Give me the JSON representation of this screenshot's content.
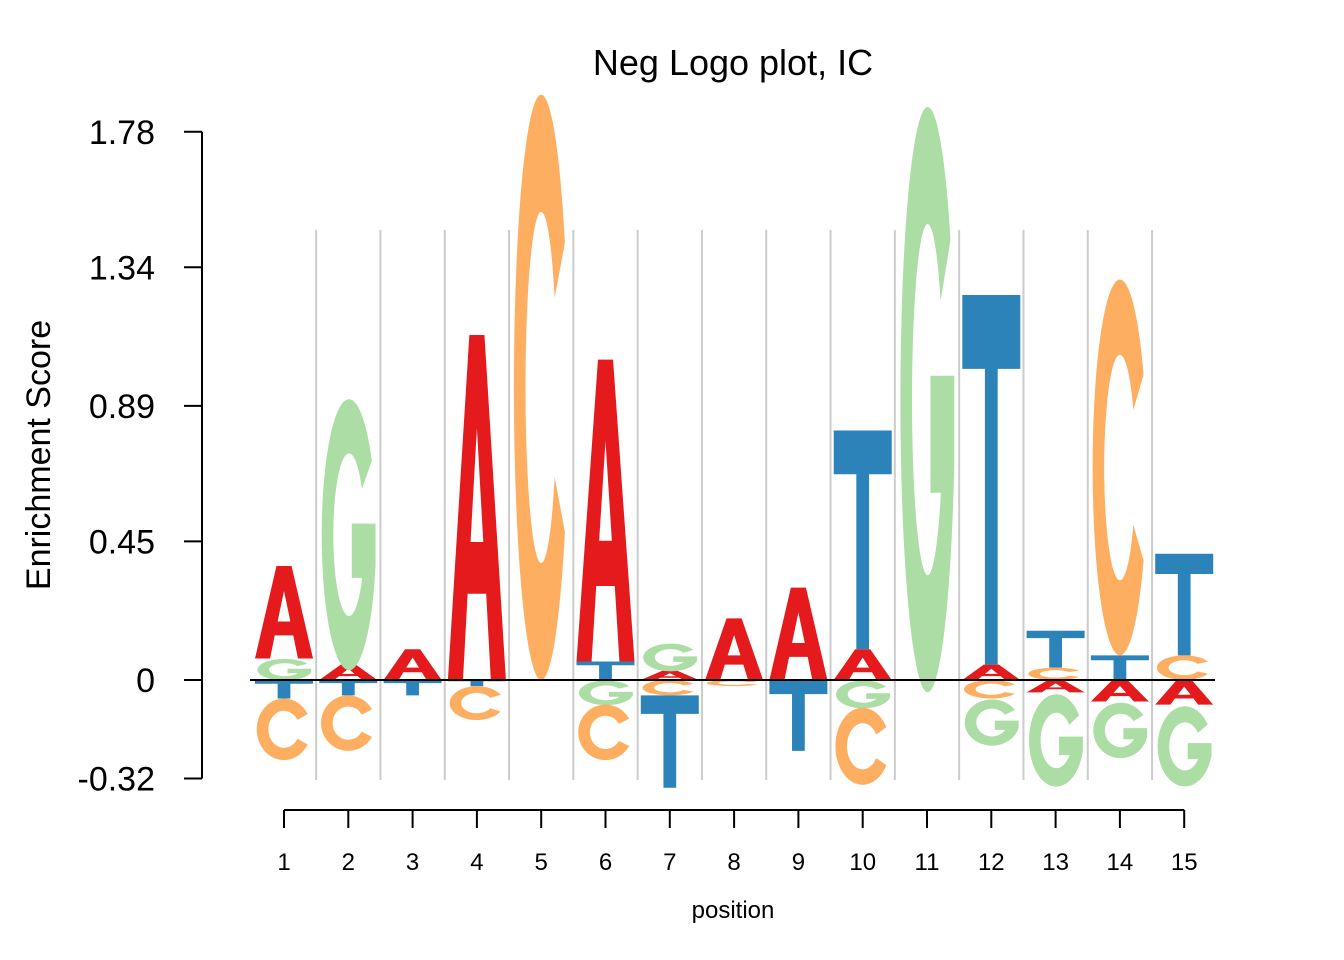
{
  "chart_data": {
    "type": "sequence-logo",
    "title": "Neg Logo plot, IC",
    "xlabel": "position",
    "ylabel": "Enrichment Score",
    "ylim": [
      -0.32,
      1.78
    ],
    "yticks": [
      "1.78",
      "1.34",
      "0.89",
      "0.45",
      "0",
      "-0.32"
    ],
    "ytick_values": [
      1.78,
      1.34,
      0.89,
      0.45,
      0,
      -0.32
    ],
    "positions": [
      "1",
      "2",
      "3",
      "4",
      "5",
      "6",
      "7",
      "8",
      "9",
      "10",
      "11",
      "12",
      "13",
      "14",
      "15"
    ],
    "colors": {
      "A": "#e41a1c",
      "C": "#fdae61",
      "G": "#abdda4",
      "T": "#2b83ba"
    },
    "stacks": [
      {
        "pos": "1",
        "pos_letters": [
          [
            "G",
            0.07
          ],
          [
            "A",
            0.3
          ]
        ],
        "neg_letters": [
          [
            "T",
            0.06
          ],
          [
            "C",
            0.2
          ]
        ]
      },
      {
        "pos": "2",
        "pos_letters": [
          [
            "A",
            0.05
          ],
          [
            "G",
            0.88
          ]
        ],
        "neg_letters": [
          [
            "T",
            0.05
          ],
          [
            "C",
            0.18
          ]
        ]
      },
      {
        "pos": "3",
        "pos_letters": [
          [
            "A",
            0.1
          ]
        ],
        "neg_letters": [
          [
            "T",
            0.05
          ]
        ]
      },
      {
        "pos": "4",
        "pos_letters": [
          [
            "A",
            1.12
          ]
        ],
        "neg_letters": [
          [
            "T",
            0.02
          ],
          [
            "C",
            0.11
          ]
        ]
      },
      {
        "pos": "5",
        "pos_letters": [
          [
            "C",
            1.9
          ]
        ],
        "neg_letters": []
      },
      {
        "pos": "6",
        "pos_letters": [
          [
            "T",
            0.06
          ],
          [
            "A",
            0.98
          ]
        ],
        "neg_letters": [
          [
            "G",
            0.08
          ],
          [
            "C",
            0.18
          ]
        ]
      },
      {
        "pos": "7",
        "pos_letters": [
          [
            "A",
            0.03
          ],
          [
            "G",
            0.09
          ]
        ],
        "neg_letters": [
          [
            "C",
            0.05
          ],
          [
            "T",
            0.3
          ]
        ]
      },
      {
        "pos": "8",
        "pos_letters": [
          [
            "A",
            0.2
          ]
        ],
        "neg_letters": [
          [
            "C",
            0.02
          ]
        ]
      },
      {
        "pos": "9",
        "pos_letters": [
          [
            "A",
            0.3
          ]
        ],
        "neg_letters": [
          [
            "T",
            0.23
          ]
        ]
      },
      {
        "pos": "10",
        "pos_letters": [
          [
            "A",
            0.1
          ],
          [
            "T",
            0.71
          ]
        ],
        "neg_letters": [
          [
            "G",
            0.09
          ],
          [
            "C",
            0.25
          ]
        ]
      },
      {
        "pos": "11",
        "pos_letters": [
          [
            "G",
            1.9
          ]
        ],
        "neg_letters": []
      },
      {
        "pos": "12",
        "pos_letters": [
          [
            "A",
            0.05
          ],
          [
            "T",
            1.2
          ]
        ],
        "neg_letters": [
          [
            "C",
            0.06
          ],
          [
            "G",
            0.15
          ]
        ]
      },
      {
        "pos": "13",
        "pos_letters": [
          [
            "C",
            0.04
          ],
          [
            "T",
            0.12
          ]
        ],
        "neg_letters": [
          [
            "A",
            0.04
          ],
          [
            "G",
            0.3
          ]
        ]
      },
      {
        "pos": "14",
        "pos_letters": [
          [
            "T",
            0.08
          ],
          [
            "C",
            1.22
          ]
        ],
        "neg_letters": [
          [
            "A",
            0.07
          ],
          [
            "G",
            0.18
          ]
        ]
      },
      {
        "pos": "15",
        "pos_letters": [
          [
            "C",
            0.08
          ],
          [
            "T",
            0.33
          ]
        ],
        "neg_letters": [
          [
            "A",
            0.08
          ],
          [
            "G",
            0.26
          ]
        ]
      }
    ]
  }
}
